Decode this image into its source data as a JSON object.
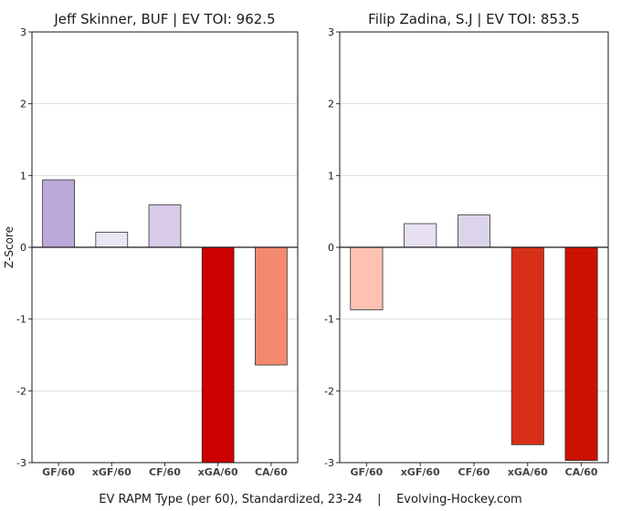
{
  "figure": {
    "xlabel": "EV RAPM Type (per 60), Standardized, 23-24    |    Evolving-Hockey.com",
    "ylabel": "Z-Score"
  },
  "chart_data": [
    {
      "type": "bar",
      "title": "Jeff Skinner, BUF  |  EV TOI: 962.5",
      "categories": [
        "GF/60",
        "xGF/60",
        "CF/60",
        "xGA/60",
        "CA/60"
      ],
      "values": [
        0.94,
        0.21,
        0.59,
        -3.0,
        -1.64
      ],
      "colors": [
        "#bcaadb",
        "#ebe6f4",
        "#d8cbe8",
        "#cc0000",
        "#f4896e"
      ],
      "ylim": [
        -3,
        3
      ],
      "yticks": [
        "-3",
        "-2",
        "-1",
        "0",
        "1",
        "2",
        "3"
      ],
      "grid": true
    },
    {
      "type": "bar",
      "title": "Filip Zadina, S.J  |  EV TOI: 853.5",
      "categories": [
        "GF/60",
        "xGF/60",
        "CF/60",
        "xGA/60",
        "CA/60"
      ],
      "values": [
        -0.87,
        0.33,
        0.45,
        -2.75,
        -2.97
      ],
      "colors": [
        "#fdc2b2",
        "#e6e0f0",
        "#dcd4ea",
        "#d83018",
        "#cc1100"
      ],
      "ylim": [
        -3,
        3
      ],
      "yticks": [
        "-3",
        "-2",
        "-1",
        "0",
        "1",
        "2",
        "3"
      ],
      "grid": true
    }
  ]
}
